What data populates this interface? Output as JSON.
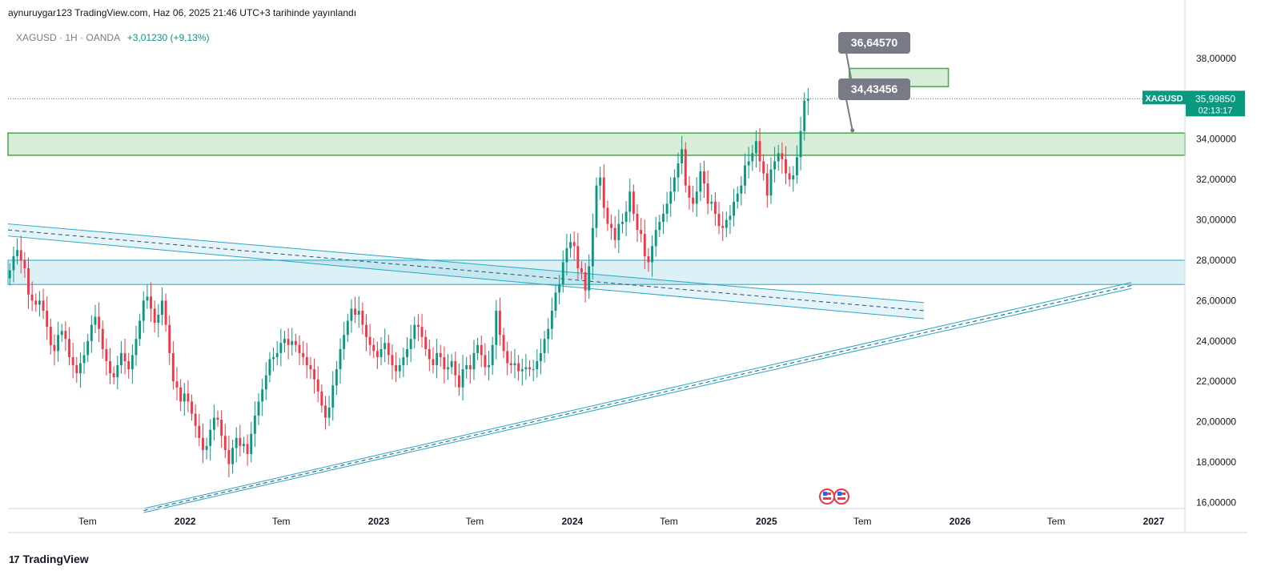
{
  "header": {
    "text": "aynuruygar123 TradingView.com, Haz 06, 2025 21:46 UTC+3 tarihinde yayınlandı"
  },
  "symbol": {
    "name": "XAGUSD",
    "sep1": "·",
    "interval": "1H",
    "sep2": "·",
    "source": "OANDA",
    "change": "+3,01230 (+9,13%)"
  },
  "brand": {
    "logo": "17",
    "name": "TradingView"
  },
  "colors": {
    "up": "#089981",
    "down": "#f23645",
    "zone_green": "#4caf50",
    "zone_cyan": "#22a7c9",
    "line_cyan": "#2aa7c2",
    "price_tag": "#089981",
    "callout": "#787b86"
  },
  "price_tag": {
    "symbol": "XAGUSD",
    "price": "35,99850",
    "countdown": "02:13:17"
  },
  "callouts": [
    {
      "label": "36,64570",
      "price": 36.6457,
      "date": "2025-06-06"
    },
    {
      "label": "34,43456",
      "price": 34.43456,
      "date": "2025-06-06"
    }
  ],
  "event_icons": [
    "us-flag-icon",
    "us-flag-icon"
  ],
  "chart_data": {
    "type": "candlestick",
    "title": "XAGUSD",
    "interval": "1H",
    "ylim": [
      15.7,
      39.7
    ],
    "xlim": [
      "2021-02-01",
      "2027-03-01"
    ],
    "y_ticks": [
      {
        "value": 16,
        "label": "16,00000"
      },
      {
        "value": 18,
        "label": "18,00000"
      },
      {
        "value": 20,
        "label": "20,00000"
      },
      {
        "value": 22,
        "label": "22,00000"
      },
      {
        "value": 24,
        "label": "24,00000"
      },
      {
        "value": 26,
        "label": "26,00000"
      },
      {
        "value": 28,
        "label": "28,00000"
      },
      {
        "value": 30,
        "label": "30,00000"
      },
      {
        "value": 32,
        "label": "32,00000"
      },
      {
        "value": 34,
        "label": "34,00000"
      },
      {
        "value": 36,
        "label": "36,00000"
      },
      {
        "value": 38,
        "label": "38,00000"
      }
    ],
    "x_ticks": [
      {
        "date": "2021-07-01",
        "label": "Tem"
      },
      {
        "date": "2022-01-01",
        "label": "2022"
      },
      {
        "date": "2022-07-01",
        "label": "Tem"
      },
      {
        "date": "2023-01-01",
        "label": "2023"
      },
      {
        "date": "2023-07-01",
        "label": "Tem"
      },
      {
        "date": "2024-01-01",
        "label": "2024"
      },
      {
        "date": "2024-07-01",
        "label": "Tem"
      },
      {
        "date": "2025-01-01",
        "label": "2025"
      },
      {
        "date": "2025-07-01",
        "label": "Tem"
      },
      {
        "date": "2026-01-01",
        "label": "2026"
      },
      {
        "date": "2026-07-01",
        "label": "Tem"
      },
      {
        "date": "2027-01-01",
        "label": "2027"
      }
    ],
    "last_price": 35.9985,
    "zones": [
      {
        "name": "resistance",
        "y_from": 33.2,
        "y_to": 34.3,
        "color": "#4caf50"
      },
      {
        "name": "target",
        "y_from": 36.6,
        "y_to": 37.5,
        "date_from": "2025-06-06",
        "date_to": "2025-12-10",
        "color": "#4caf50"
      },
      {
        "name": "support",
        "y_from": 26.8,
        "y_to": 28.0,
        "color": "#22a7c9"
      }
    ],
    "channels": [
      {
        "name": "falling-channel",
        "from": {
          "date": "2021-02-01",
          "upper": 29.8,
          "lower": 29.2
        },
        "to": {
          "date": "2025-10-25",
          "upper": 25.9,
          "lower": 25.1
        }
      },
      {
        "name": "rising-trendline",
        "from": {
          "date": "2021-10-15",
          "upper": 15.7,
          "lower": 15.5
        },
        "to": {
          "date": "2026-11-20",
          "upper": 26.9,
          "lower": 26.6
        }
      }
    ],
    "candle_closes": [
      27.5,
      28.2,
      28.5,
      28.0,
      27.6,
      26.3,
      26.0,
      25.8,
      26.0,
      25.5,
      24.7,
      23.8,
      23.5,
      24.3,
      24.5,
      24.1,
      23.2,
      22.8,
      22.4,
      22.9,
      23.3,
      24.0,
      24.8,
      25.2,
      24.6,
      23.6,
      23.0,
      22.4,
      22.2,
      22.8,
      23.4,
      23.0,
      22.6,
      23.3,
      24.1,
      25.0,
      26.0,
      26.2,
      25.6,
      24.9,
      25.3,
      26.0,
      24.8,
      23.4,
      22.0,
      21.7,
      21.0,
      21.4,
      21.0,
      20.4,
      19.8,
      19.2,
      18.6,
      18.8,
      19.6,
      20.2,
      20.1,
      19.3,
      18.6,
      17.9,
      18.7,
      19.2,
      18.8,
      18.9,
      18.4,
      19.4,
      20.3,
      21.0,
      21.6,
      22.3,
      23.1,
      23.2,
      23.4,
      23.9,
      24.1,
      23.8,
      24.0,
      23.8,
      23.4,
      23.2,
      22.8,
      22.6,
      22.1,
      21.5,
      20.8,
      20.2,
      20.7,
      21.8,
      22.6,
      23.6,
      24.3,
      25.0,
      25.6,
      25.3,
      25.5,
      24.8,
      24.2,
      23.8,
      23.5,
      23.2,
      23.6,
      23.9,
      23.3,
      22.8,
      22.5,
      22.8,
      23.2,
      23.6,
      24.1,
      24.8,
      24.7,
      24.2,
      23.6,
      23.1,
      22.8,
      23.4,
      23.2,
      22.6,
      22.7,
      23.0,
      22.3,
      21.7,
      22.6,
      22.8,
      22.6,
      23.4,
      23.8,
      23.3,
      22.7,
      22.8,
      23.8,
      25.5,
      24.3,
      23.5,
      22.9,
      22.8,
      22.9,
      22.5,
      22.6,
      22.7,
      22.6,
      22.6,
      23.0,
      23.4,
      24.1,
      24.6,
      25.5,
      26.4,
      26.8,
      27.9,
      28.6,
      28.9,
      28.7,
      27.6,
      27.4,
      26.5,
      27.7,
      29.6,
      31.7,
      32.1,
      30.6,
      29.8,
      29.6,
      29.0,
      29.8,
      29.9,
      30.4,
      31.4,
      30.3,
      29.5,
      29.3,
      28.2,
      27.9,
      28.7,
      29.5,
      29.9,
      30.3,
      30.8,
      31.4,
      32.1,
      32.8,
      33.5,
      31.7,
      31.1,
      30.8,
      31.4,
      32.4,
      31.8,
      30.8,
      30.9,
      30.3,
      29.7,
      29.6,
      30.0,
      30.2,
      30.9,
      31.3,
      31.7,
      32.7,
      32.9,
      33.3,
      33.9,
      32.9,
      32.3,
      31.2,
      32.5,
      32.9,
      33.3,
      33.0,
      32.3,
      32.0,
      32.2,
      33.1,
      34.4,
      35.9,
      36.0
    ]
  }
}
